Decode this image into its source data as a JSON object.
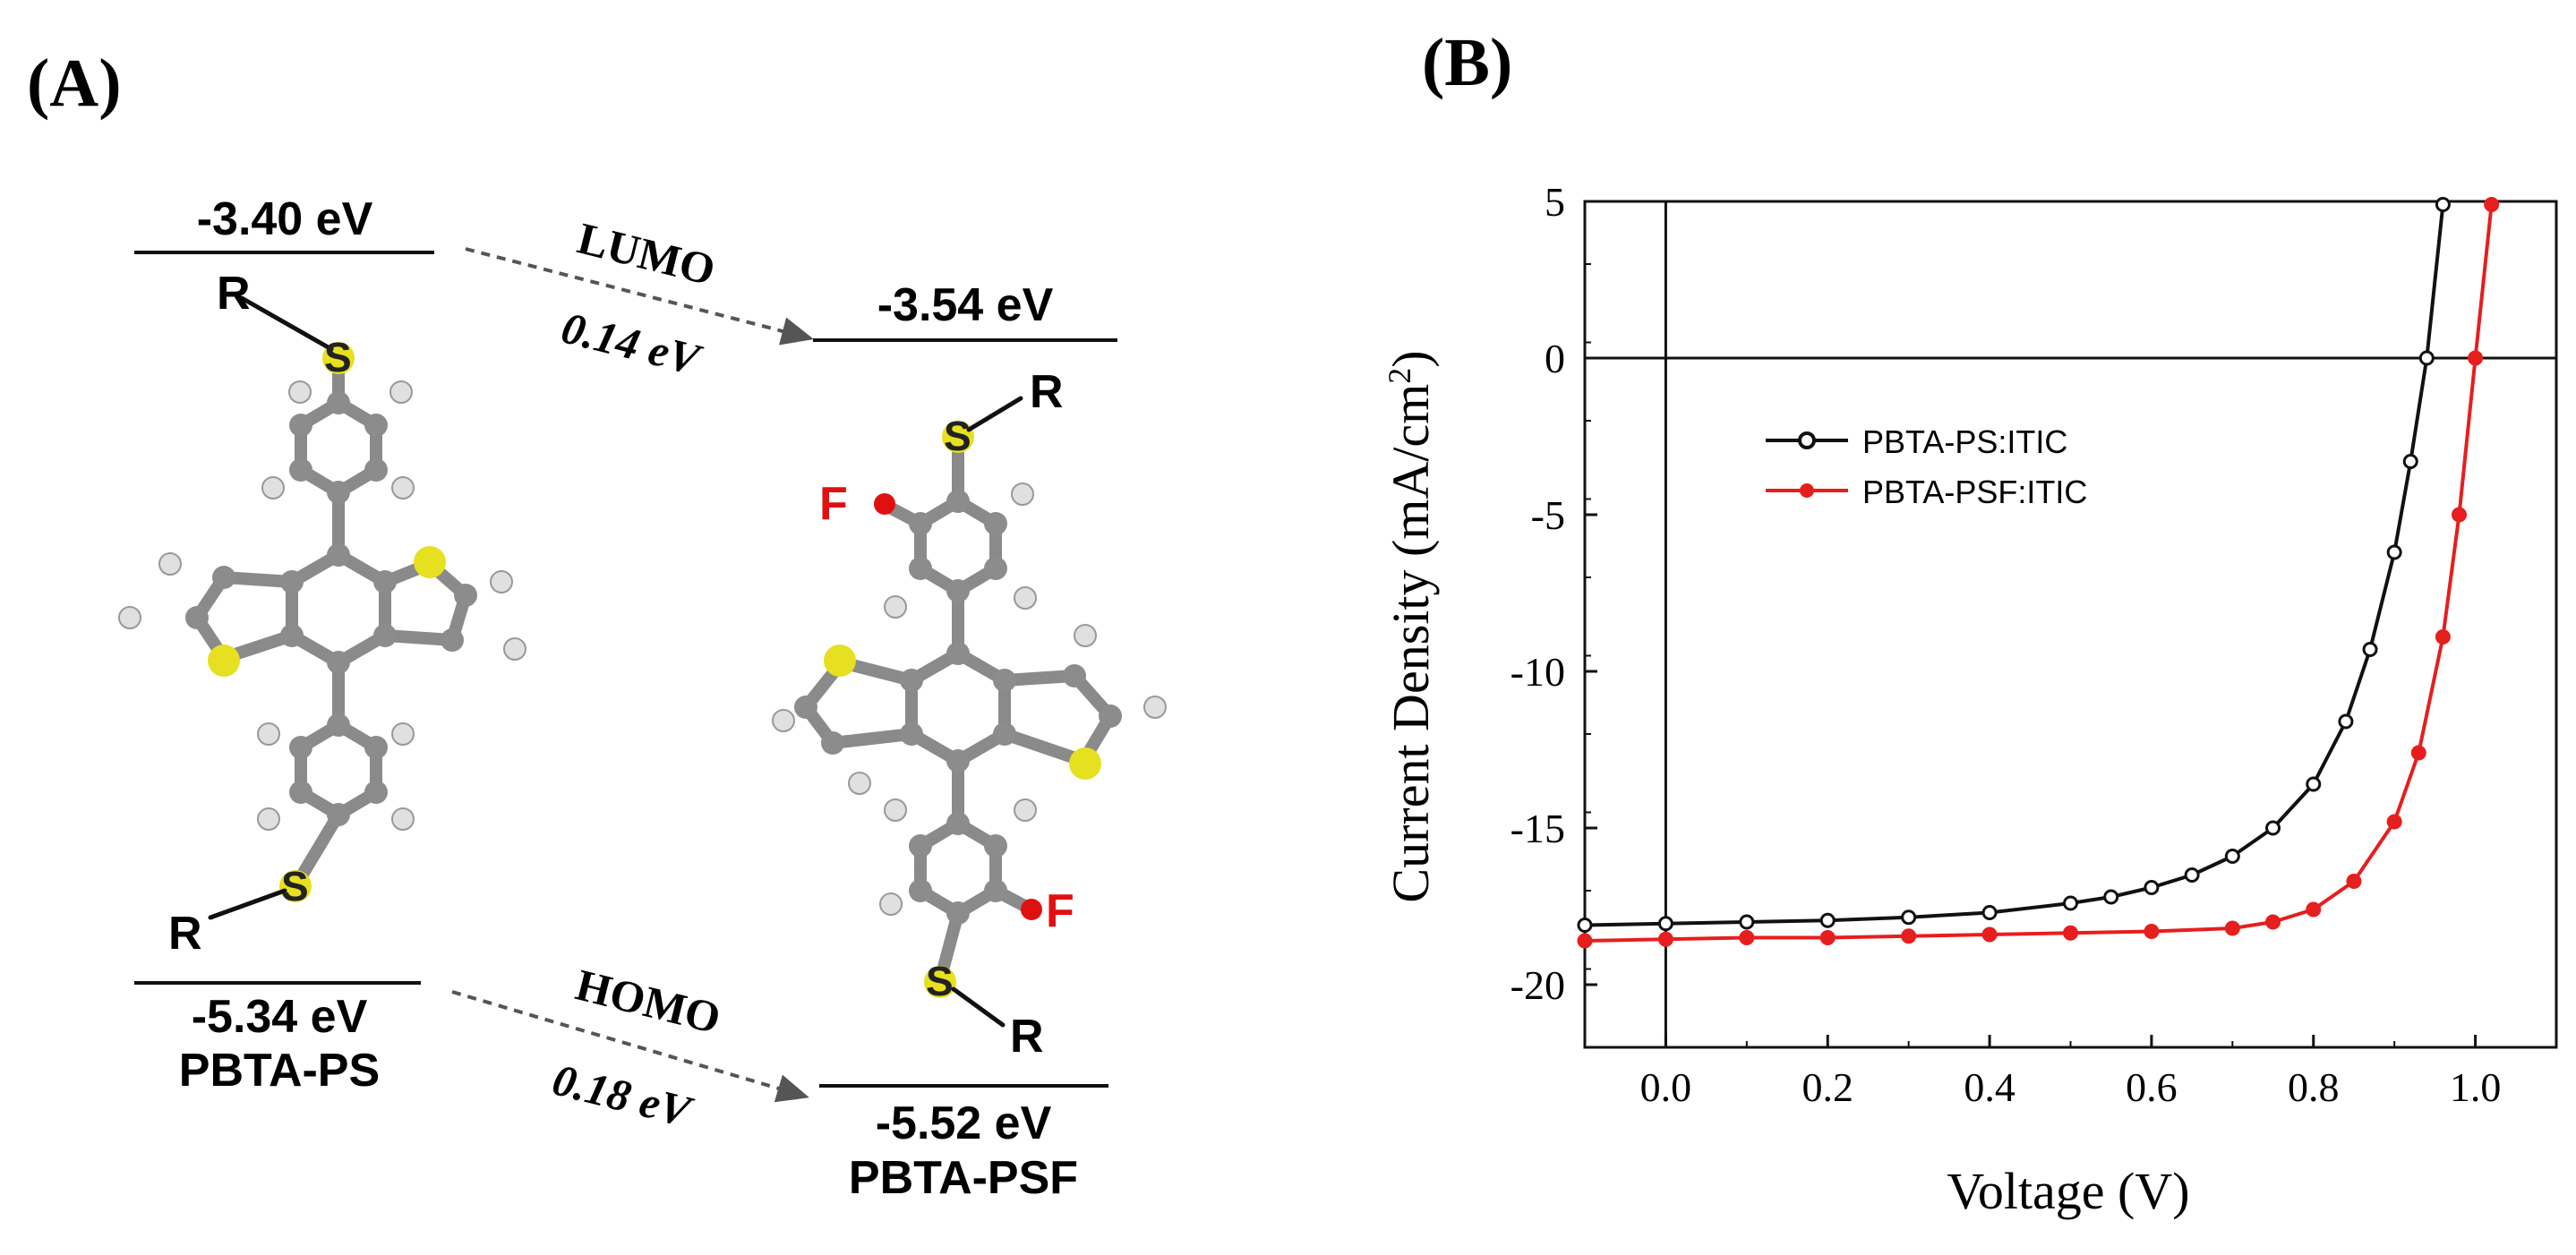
{
  "panel_a": {
    "label": "(A)",
    "ps": {
      "lumo": "-3.40 eV",
      "homo": "-5.34 eV",
      "name": "PBTA-PS",
      "r_top": "R",
      "r_bottom": "R",
      "s_atom": "S"
    },
    "psf": {
      "lumo": "-3.54 eV",
      "homo": "-5.52 eV",
      "name": "PBTA-PSF",
      "r_top": "R",
      "r_bottom": "R",
      "f_top": "F",
      "f_bottom": "F",
      "s_atom": "S"
    },
    "lumo_label": "LUMO",
    "lumo_diff": "0.14 eV",
    "homo_label": "HOMO",
    "homo_diff": "0.18 eV",
    "colors": {
      "fluorine": "#e01010",
      "sulfur": "#e6e020",
      "carbon": "#8a8a8a",
      "hydrogen": "#e8e8e8"
    }
  },
  "panel_b": {
    "label": "(B)",
    "chart_data": {
      "type": "line",
      "title": "",
      "xlabel": "Voltage (V)",
      "ylabel": "Current Density (mA/cm",
      "ylabel_sup": "2",
      "ylabel_end": ")",
      "xlim": [
        -0.1,
        1.1
      ],
      "ylim": [
        -22,
        5
      ],
      "xticks": [
        0.0,
        0.2,
        0.4,
        0.6,
        0.8,
        1.0
      ],
      "xtick_labels": [
        "0.0",
        "0.2",
        "0.4",
        "0.6",
        "0.8",
        "1.0"
      ],
      "yticks": [
        5,
        0,
        -5,
        -10,
        -15,
        -20
      ],
      "ytick_labels": [
        "5",
        "0",
        "-5",
        "-10",
        "-15",
        "-20"
      ],
      "legend_position": "center-left",
      "series": [
        {
          "name": "PBTA-PS:ITIC",
          "color": "#111111",
          "x": [
            -0.1,
            0.0,
            0.1,
            0.2,
            0.3,
            0.4,
            0.5,
            0.55,
            0.6,
            0.65,
            0.7,
            0.75,
            0.8,
            0.84,
            0.87,
            0.9,
            0.92,
            0.94,
            0.96
          ],
          "y": [
            -18.1,
            -18.05,
            -18.0,
            -17.95,
            -17.85,
            -17.7,
            -17.4,
            -17.2,
            -16.9,
            -16.5,
            -15.9,
            -15.0,
            -13.6,
            -11.6,
            -9.3,
            -6.2,
            -3.3,
            0.0,
            4.9
          ]
        },
        {
          "name": "PBTA-PSF:ITIC",
          "color": "#e61e1e",
          "x": [
            -0.1,
            0.0,
            0.1,
            0.2,
            0.3,
            0.4,
            0.5,
            0.6,
            0.7,
            0.75,
            0.8,
            0.85,
            0.9,
            0.93,
            0.96,
            0.98,
            1.0,
            1.02
          ],
          "y": [
            -18.6,
            -18.55,
            -18.5,
            -18.5,
            -18.45,
            -18.4,
            -18.35,
            -18.3,
            -18.2,
            -18.0,
            -17.6,
            -16.7,
            -14.8,
            -12.6,
            -8.9,
            -5.0,
            0.0,
            4.9
          ]
        }
      ]
    }
  }
}
